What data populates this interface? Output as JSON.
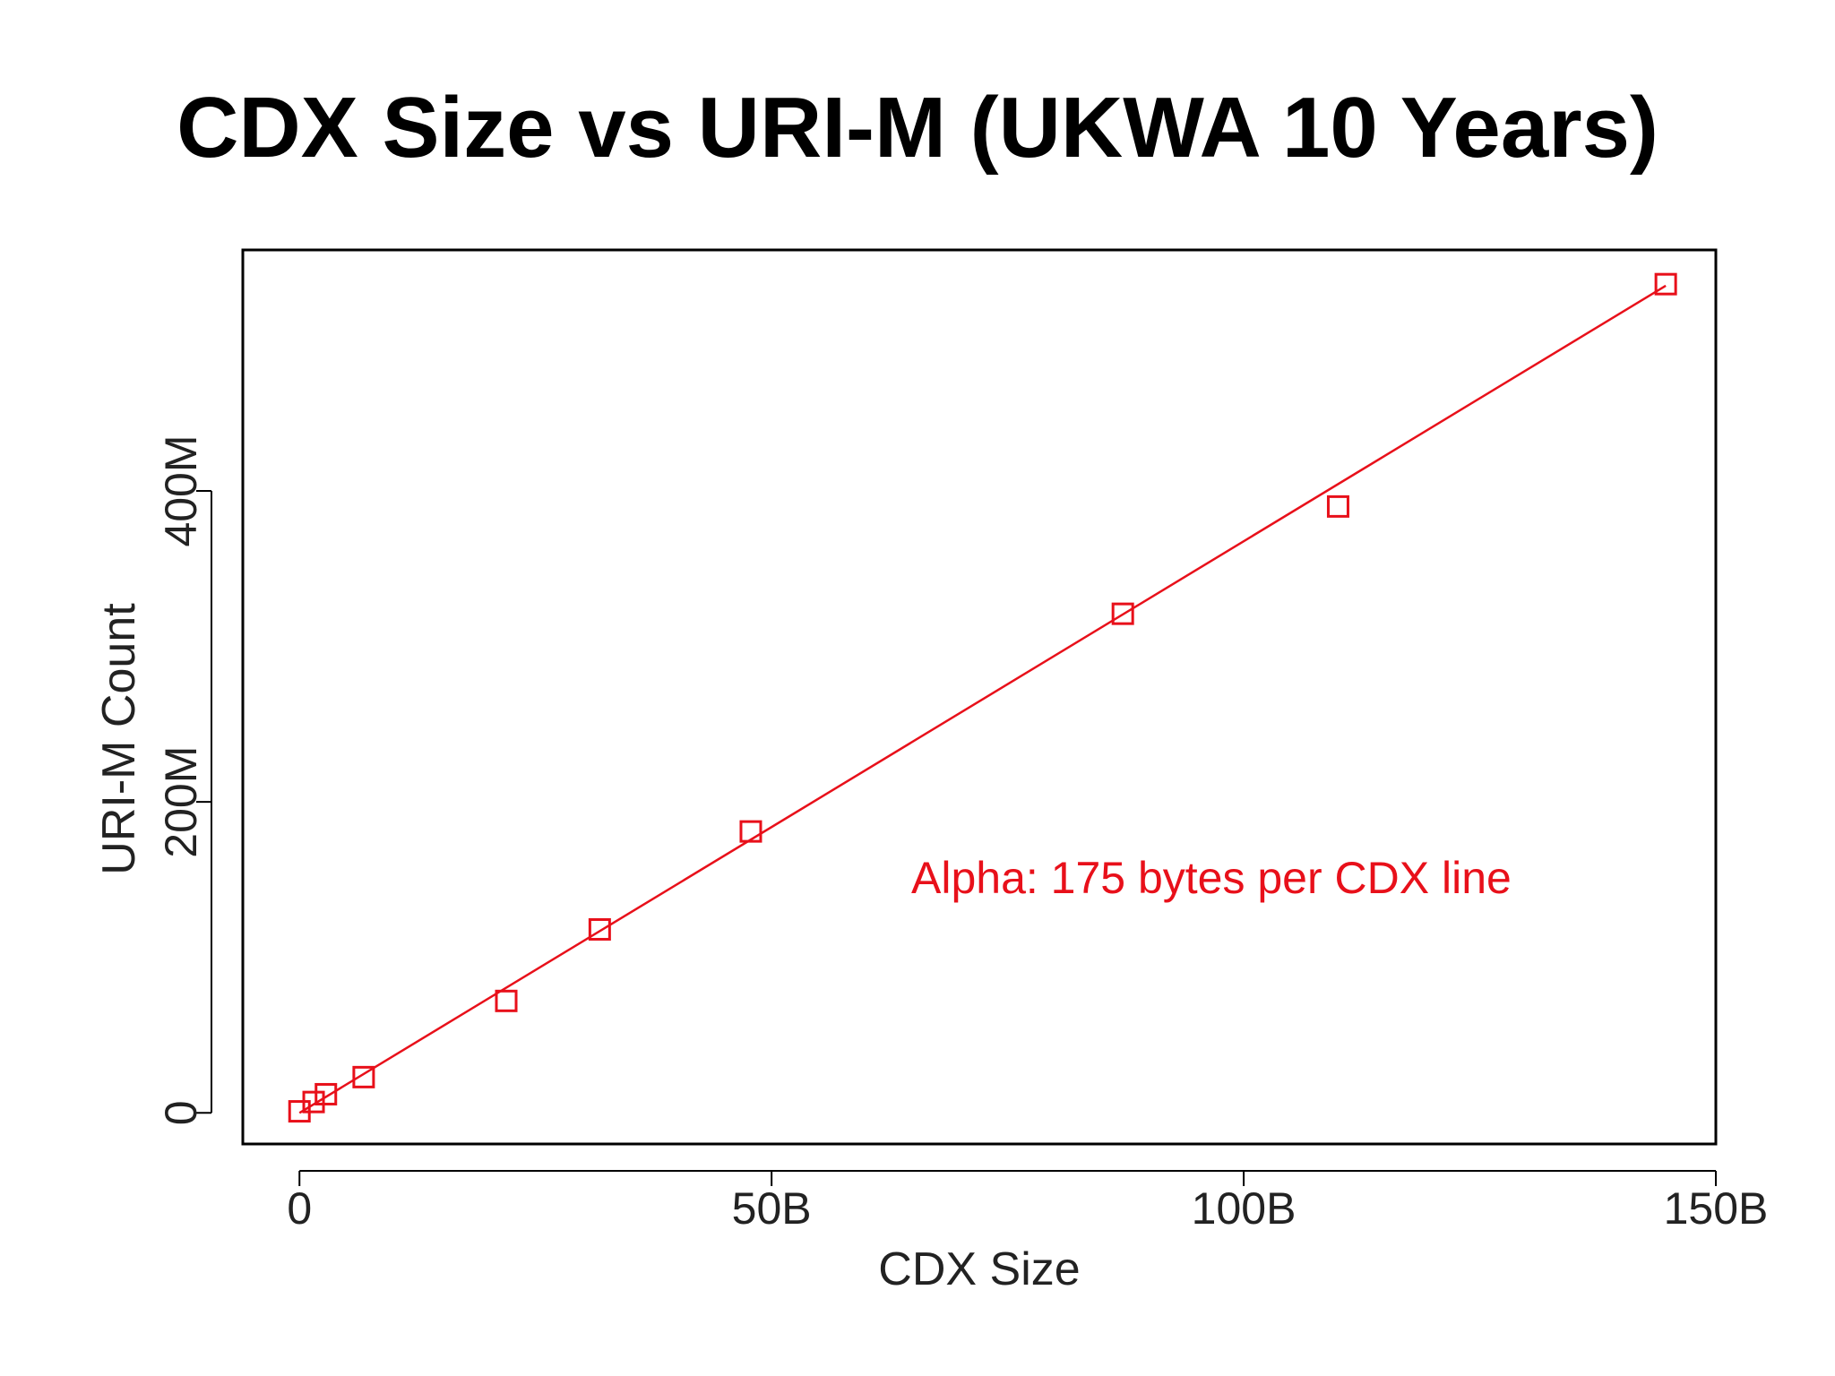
{
  "title": "CDX Size vs URI-M (UKWA 10 Years)",
  "chart_data": {
    "type": "scatter",
    "title": "CDX Size vs URI-M (UKWA 10 Years)",
    "xlabel": "CDX Size",
    "ylabel": "URI-M Count",
    "xlim": [
      -6,
      150
    ],
    "ylim": [
      -20,
      555
    ],
    "x_ticks": [
      {
        "value": 0,
        "label": "0"
      },
      {
        "value": 50,
        "label": "50B"
      },
      {
        "value": 100,
        "label": "100B"
      },
      {
        "value": 150,
        "label": "150B"
      }
    ],
    "y_ticks": [
      {
        "value": 0,
        "label": "0"
      },
      {
        "value": 200,
        "label": "200M"
      },
      {
        "value": 400,
        "label": "400M"
      }
    ],
    "x_unit": "B (billion)",
    "y_unit": "M (million)",
    "grid": false,
    "marker": "open-square",
    "series": [
      {
        "color": "#e8101a",
        "x": [
          0.0,
          1.5,
          2.8,
          6.8,
          21.9,
          31.8,
          47.8,
          87.2,
          110.0,
          144.7
        ],
        "y": [
          1,
          7,
          12,
          23,
          72,
          118,
          181,
          321,
          390,
          533
        ]
      }
    ],
    "fit_line": {
      "color": "#e8101a",
      "x": [
        0,
        144.7
      ],
      "y": [
        0,
        532
      ]
    },
    "annotations": [
      {
        "text": "Alpha: 175 bytes per CDX line",
        "color": "#e8101a"
      }
    ]
  }
}
